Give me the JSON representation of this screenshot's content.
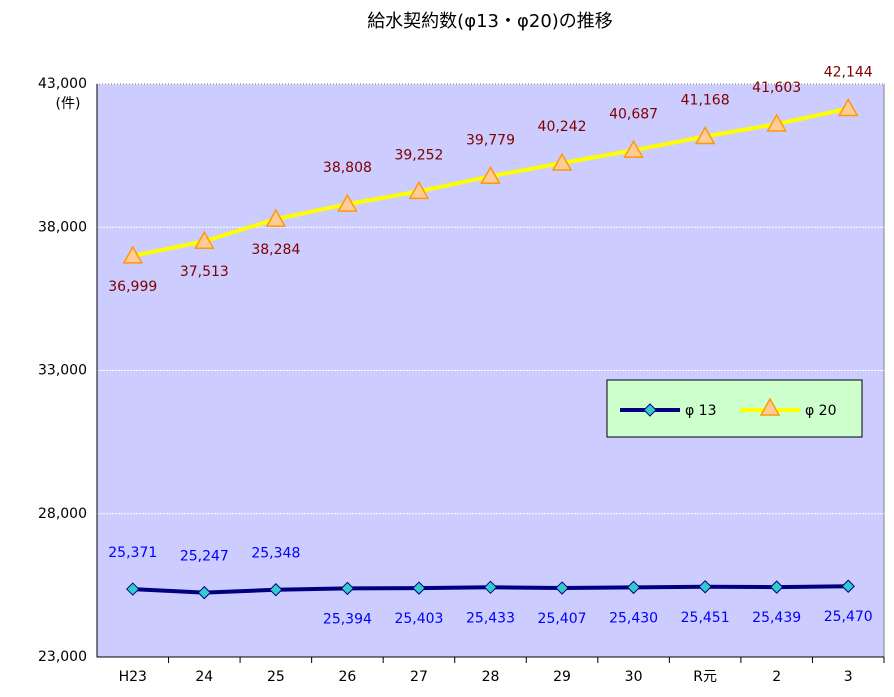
{
  "chart_data": {
    "type": "line",
    "title": "給水契約数(φ13・φ20)の推移",
    "y_label": "(件)",
    "categories": [
      "H23",
      "24",
      "25",
      "26",
      "27",
      "28",
      "29",
      "30",
      "R元",
      "2",
      "3"
    ],
    "series": [
      {
        "name": "φ 13",
        "color": "#000080",
        "marker_color": "#33cccc",
        "label_color": "#0000ff",
        "values": [
          25371,
          25247,
          25348,
          25394,
          25403,
          25433,
          25407,
          25430,
          25451,
          25439,
          25470
        ],
        "value_labels": [
          "25,371",
          "25,247",
          "25,348",
          "25,394",
          "25,403",
          "25,433",
          "25,407",
          "25,430",
          "25,451",
          "25,439",
          "25,470"
        ]
      },
      {
        "name": "φ 20",
        "color": "#ffff00",
        "marker_color": "#ff9900",
        "label_color": "#800000",
        "values": [
          36999,
          37513,
          38284,
          38808,
          39252,
          39779,
          40242,
          40687,
          41168,
          41603,
          42144
        ],
        "value_labels": [
          "36,999",
          "37,513",
          "38,284",
          "38,808",
          "39,252",
          "39,779",
          "40,242",
          "40,687",
          "41,168",
          "41,603",
          "42,144"
        ]
      }
    ],
    "ylim": [
      23000,
      43000
    ],
    "yticks": [
      {
        "value": 23000,
        "label": "23,000"
      },
      {
        "value": 28000,
        "label": "28,000"
      },
      {
        "value": 33000,
        "label": "33,000"
      },
      {
        "value": 38000,
        "label": "38,000"
      },
      {
        "value": 43000,
        "label": "43,000"
      }
    ],
    "grid": true
  }
}
